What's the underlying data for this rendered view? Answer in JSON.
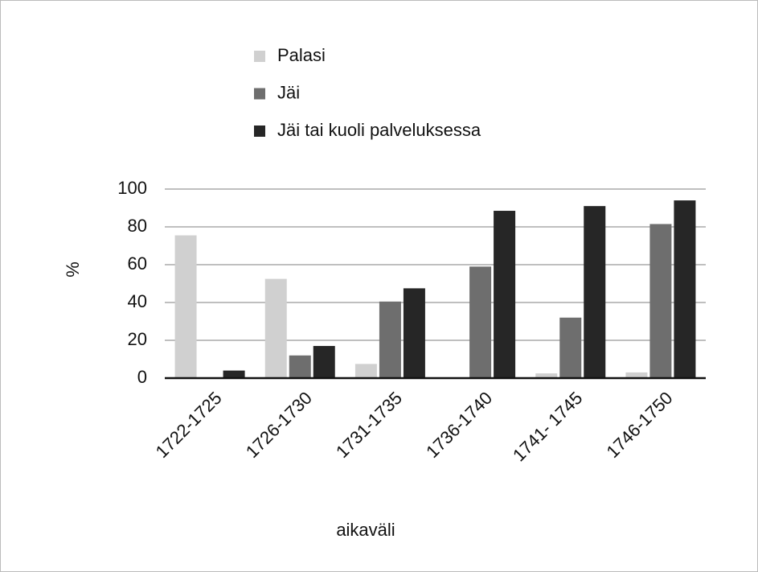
{
  "chart_data": {
    "type": "bar",
    "categories": [
      "1722-1725",
      "1726-1730",
      "1731-1735",
      "1736-1740",
      "1741- 1745",
      "1746-1750"
    ],
    "series": [
      {
        "name": "Palasi",
        "color": "#d0d0d0",
        "values": [
          75.5,
          52.5,
          7.5,
          0,
          2.5,
          3
        ]
      },
      {
        "name": "Jäi",
        "color": "#6e6e6e",
        "values": [
          0,
          12,
          40.5,
          59,
          32,
          81.5
        ]
      },
      {
        "name": "Jäi tai kuoli palveluksessa",
        "color": "#262626",
        "values": [
          4,
          17,
          47.5,
          88.5,
          91,
          94
        ]
      }
    ],
    "ylabel": "%",
    "xlabel": "aikaväli",
    "ylim": [
      0,
      100
    ],
    "yticks": [
      0,
      20,
      40,
      60,
      80,
      100
    ],
    "grid": true,
    "legend": "top"
  }
}
